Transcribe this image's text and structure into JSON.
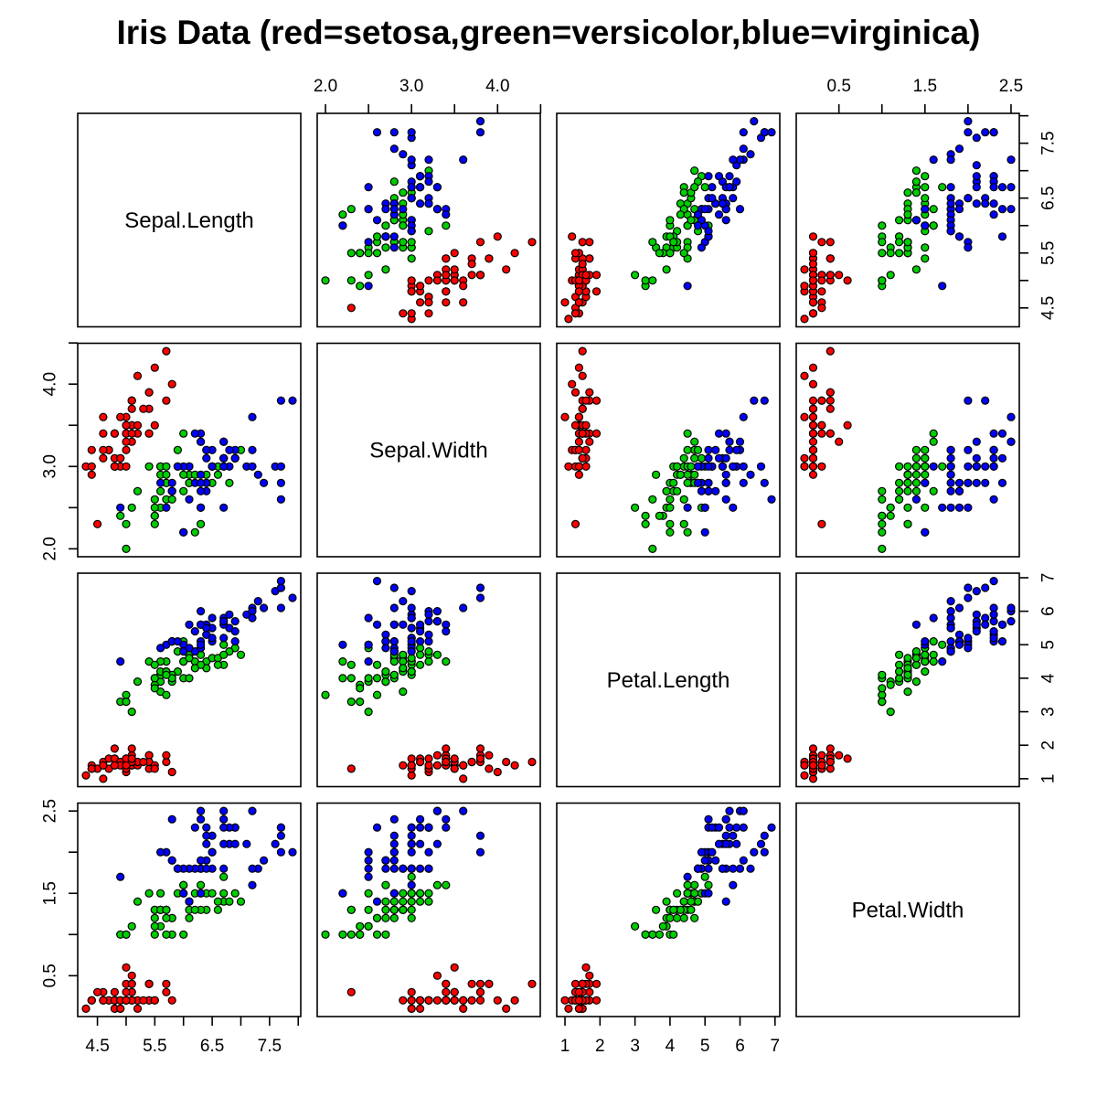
{
  "title": "Iris Data (red=setosa,green=versicolor,blue=virginica)",
  "chart_data": {
    "type": "scatter",
    "subtype": "pairs-matrix",
    "title": "Iris Data (red=setosa,green=versicolor,blue=virginica)",
    "grid": false,
    "legend": "encoded in title: red=setosa, green=versicolor, blue=virginica",
    "point_style": {
      "shape": "circle",
      "stroke": "#000000",
      "fill_by": "species"
    },
    "species": [
      "setosa",
      "versicolor",
      "virginica"
    ],
    "colors": {
      "setosa": "#FF0000",
      "versicolor": "#00CD00",
      "virginica": "#0000FF"
    },
    "variables": [
      {
        "name": "Sepal.Length",
        "lim": [
          4.156,
          8.044
        ],
        "ticks": [
          4.5,
          5.0,
          5.5,
          6.0,
          6.5,
          7.0,
          7.5,
          8.0
        ],
        "tick_labels": [
          "4.5",
          "",
          "5.5",
          "",
          "6.5",
          "",
          "7.5",
          ""
        ]
      },
      {
        "name": "Sepal.Width",
        "lim": [
          1.904,
          4.496
        ],
        "ticks": [
          2.0,
          2.5,
          3.0,
          3.5,
          4.0,
          4.5
        ],
        "tick_labels": [
          "2.0",
          "",
          "3.0",
          "",
          "4.0",
          ""
        ]
      },
      {
        "name": "Petal.Length",
        "lim": [
          0.764,
          7.136
        ],
        "ticks": [
          1,
          2,
          3,
          4,
          5,
          6,
          7
        ],
        "tick_labels": [
          "1",
          "2",
          "3",
          "4",
          "5",
          "6",
          "7"
        ]
      },
      {
        "name": "Petal.Width",
        "lim": [
          0.004,
          2.596
        ],
        "ticks": [
          0.5,
          1.0,
          1.5,
          2.0,
          2.5
        ],
        "tick_labels": [
          "0.5",
          "",
          "1.5",
          "",
          "2.5"
        ]
      }
    ],
    "axis_sides": {
      "top_columns": [
        1,
        3
      ],
      "bottom_columns": [
        0,
        2
      ],
      "left_rows": [
        1,
        3
      ],
      "right_rows": [
        0,
        2
      ]
    },
    "points": [
      [
        5.1,
        3.5,
        1.4,
        0.2,
        0
      ],
      [
        4.9,
        3.0,
        1.4,
        0.2,
        0
      ],
      [
        4.7,
        3.2,
        1.3,
        0.2,
        0
      ],
      [
        4.6,
        3.1,
        1.5,
        0.2,
        0
      ],
      [
        5.0,
        3.6,
        1.4,
        0.2,
        0
      ],
      [
        5.4,
        3.9,
        1.7,
        0.4,
        0
      ],
      [
        4.6,
        3.4,
        1.4,
        0.3,
        0
      ],
      [
        5.0,
        3.4,
        1.5,
        0.2,
        0
      ],
      [
        4.4,
        2.9,
        1.4,
        0.2,
        0
      ],
      [
        4.9,
        3.1,
        1.5,
        0.1,
        0
      ],
      [
        5.4,
        3.7,
        1.5,
        0.2,
        0
      ],
      [
        4.8,
        3.4,
        1.6,
        0.2,
        0
      ],
      [
        4.8,
        3.0,
        1.4,
        0.1,
        0
      ],
      [
        4.3,
        3.0,
        1.1,
        0.1,
        0
      ],
      [
        5.8,
        4.0,
        1.2,
        0.2,
        0
      ],
      [
        5.7,
        4.4,
        1.5,
        0.4,
        0
      ],
      [
        5.4,
        3.9,
        1.3,
        0.4,
        0
      ],
      [
        5.1,
        3.5,
        1.4,
        0.3,
        0
      ],
      [
        5.7,
        3.8,
        1.7,
        0.3,
        0
      ],
      [
        5.1,
        3.8,
        1.5,
        0.3,
        0
      ],
      [
        5.4,
        3.4,
        1.7,
        0.2,
        0
      ],
      [
        5.1,
        3.7,
        1.5,
        0.4,
        0
      ],
      [
        4.6,
        3.6,
        1.0,
        0.2,
        0
      ],
      [
        5.1,
        3.3,
        1.7,
        0.5,
        0
      ],
      [
        4.8,
        3.4,
        1.9,
        0.2,
        0
      ],
      [
        5.0,
        3.0,
        1.6,
        0.2,
        0
      ],
      [
        5.0,
        3.4,
        1.6,
        0.4,
        0
      ],
      [
        5.2,
        3.5,
        1.5,
        0.2,
        0
      ],
      [
        5.2,
        3.4,
        1.4,
        0.2,
        0
      ],
      [
        4.7,
        3.2,
        1.6,
        0.2,
        0
      ],
      [
        4.8,
        3.1,
        1.6,
        0.2,
        0
      ],
      [
        5.4,
        3.4,
        1.5,
        0.4,
        0
      ],
      [
        5.2,
        4.1,
        1.5,
        0.1,
        0
      ],
      [
        5.5,
        4.2,
        1.4,
        0.2,
        0
      ],
      [
        4.9,
        3.1,
        1.5,
        0.2,
        0
      ],
      [
        5.0,
        3.2,
        1.2,
        0.2,
        0
      ],
      [
        5.5,
        3.5,
        1.3,
        0.2,
        0
      ],
      [
        4.9,
        3.6,
        1.4,
        0.1,
        0
      ],
      [
        4.4,
        3.0,
        1.3,
        0.2,
        0
      ],
      [
        5.1,
        3.4,
        1.5,
        0.2,
        0
      ],
      [
        5.0,
        3.5,
        1.3,
        0.3,
        0
      ],
      [
        4.5,
        2.3,
        1.3,
        0.3,
        0
      ],
      [
        4.4,
        3.2,
        1.3,
        0.2,
        0
      ],
      [
        5.0,
        3.5,
        1.6,
        0.6,
        0
      ],
      [
        5.1,
        3.8,
        1.9,
        0.4,
        0
      ],
      [
        4.8,
        3.0,
        1.4,
        0.3,
        0
      ],
      [
        5.1,
        3.8,
        1.6,
        0.2,
        0
      ],
      [
        4.6,
        3.2,
        1.4,
        0.2,
        0
      ],
      [
        5.3,
        3.7,
        1.5,
        0.2,
        0
      ],
      [
        5.0,
        3.3,
        1.4,
        0.2,
        0
      ],
      [
        7.0,
        3.2,
        4.7,
        1.4,
        1
      ],
      [
        6.4,
        3.2,
        4.5,
        1.5,
        1
      ],
      [
        6.9,
        3.1,
        4.9,
        1.5,
        1
      ],
      [
        5.5,
        2.3,
        4.0,
        1.3,
        1
      ],
      [
        6.5,
        2.8,
        4.6,
        1.5,
        1
      ],
      [
        5.7,
        2.8,
        4.5,
        1.3,
        1
      ],
      [
        6.3,
        3.3,
        4.7,
        1.6,
        1
      ],
      [
        4.9,
        2.4,
        3.3,
        1.0,
        1
      ],
      [
        6.6,
        2.9,
        4.6,
        1.3,
        1
      ],
      [
        5.2,
        2.7,
        3.9,
        1.4,
        1
      ],
      [
        5.0,
        2.0,
        3.5,
        1.0,
        1
      ],
      [
        5.9,
        3.0,
        4.2,
        1.5,
        1
      ],
      [
        6.0,
        2.2,
        4.0,
        1.0,
        1
      ],
      [
        6.1,
        2.9,
        4.7,
        1.4,
        1
      ],
      [
        5.6,
        2.9,
        3.6,
        1.3,
        1
      ],
      [
        6.7,
        3.1,
        4.4,
        1.4,
        1
      ],
      [
        5.6,
        3.0,
        4.5,
        1.5,
        1
      ],
      [
        5.8,
        2.7,
        4.1,
        1.0,
        1
      ],
      [
        6.2,
        2.2,
        4.5,
        1.5,
        1
      ],
      [
        5.6,
        2.5,
        3.9,
        1.1,
        1
      ],
      [
        5.9,
        3.2,
        4.8,
        1.8,
        1
      ],
      [
        6.1,
        2.8,
        4.0,
        1.3,
        1
      ],
      [
        6.3,
        2.5,
        4.9,
        1.5,
        1
      ],
      [
        6.1,
        2.8,
        4.7,
        1.2,
        1
      ],
      [
        6.4,
        2.9,
        4.3,
        1.3,
        1
      ],
      [
        6.6,
        3.0,
        4.4,
        1.4,
        1
      ],
      [
        6.8,
        2.8,
        4.8,
        1.4,
        1
      ],
      [
        6.7,
        3.0,
        5.0,
        1.7,
        1
      ],
      [
        6.0,
        2.9,
        4.5,
        1.5,
        1
      ],
      [
        5.7,
        2.6,
        3.5,
        1.0,
        1
      ],
      [
        5.5,
        2.4,
        3.8,
        1.1,
        1
      ],
      [
        5.5,
        2.4,
        3.7,
        1.0,
        1
      ],
      [
        5.8,
        2.7,
        3.9,
        1.2,
        1
      ],
      [
        6.0,
        2.7,
        5.1,
        1.6,
        1
      ],
      [
        5.4,
        3.0,
        4.5,
        1.5,
        1
      ],
      [
        6.0,
        3.4,
        4.5,
        1.6,
        1
      ],
      [
        6.7,
        3.1,
        4.7,
        1.5,
        1
      ],
      [
        6.3,
        2.3,
        4.4,
        1.3,
        1
      ],
      [
        5.6,
        3.0,
        4.1,
        1.3,
        1
      ],
      [
        5.5,
        2.5,
        4.0,
        1.3,
        1
      ],
      [
        5.5,
        2.6,
        4.4,
        1.2,
        1
      ],
      [
        6.1,
        3.0,
        4.6,
        1.4,
        1
      ],
      [
        5.8,
        2.6,
        4.0,
        1.2,
        1
      ],
      [
        5.0,
        2.3,
        3.3,
        1.0,
        1
      ],
      [
        5.6,
        2.7,
        4.2,
        1.3,
        1
      ],
      [
        5.7,
        3.0,
        4.2,
        1.2,
        1
      ],
      [
        5.7,
        2.9,
        4.2,
        1.3,
        1
      ],
      [
        6.2,
        2.9,
        4.3,
        1.3,
        1
      ],
      [
        5.1,
        2.5,
        3.0,
        1.1,
        1
      ],
      [
        5.7,
        2.8,
        4.1,
        1.3,
        1
      ],
      [
        6.3,
        3.3,
        6.0,
        2.5,
        2
      ],
      [
        5.8,
        2.7,
        5.1,
        1.9,
        2
      ],
      [
        7.1,
        3.0,
        5.9,
        2.1,
        2
      ],
      [
        6.3,
        2.9,
        5.6,
        1.8,
        2
      ],
      [
        6.5,
        3.0,
        5.8,
        2.2,
        2
      ],
      [
        7.6,
        3.0,
        6.6,
        2.1,
        2
      ],
      [
        4.9,
        2.5,
        4.5,
        1.7,
        2
      ],
      [
        7.3,
        2.9,
        6.3,
        1.8,
        2
      ],
      [
        6.7,
        2.5,
        5.8,
        1.8,
        2
      ],
      [
        7.2,
        3.6,
        6.1,
        2.5,
        2
      ],
      [
        6.5,
        3.2,
        5.1,
        2.0,
        2
      ],
      [
        6.4,
        2.7,
        5.3,
        1.9,
        2
      ],
      [
        6.8,
        3.0,
        5.5,
        2.1,
        2
      ],
      [
        5.7,
        2.5,
        5.0,
        2.0,
        2
      ],
      [
        5.8,
        2.8,
        5.1,
        2.4,
        2
      ],
      [
        6.4,
        3.2,
        5.3,
        2.3,
        2
      ],
      [
        6.5,
        3.0,
        5.5,
        1.8,
        2
      ],
      [
        7.7,
        3.8,
        6.7,
        2.2,
        2
      ],
      [
        7.7,
        2.6,
        6.9,
        2.3,
        2
      ],
      [
        6.0,
        2.2,
        5.0,
        1.5,
        2
      ],
      [
        6.9,
        3.2,
        5.7,
        2.3,
        2
      ],
      [
        5.6,
        2.8,
        4.9,
        2.0,
        2
      ],
      [
        7.7,
        2.8,
        6.7,
        2.0,
        2
      ],
      [
        6.3,
        2.7,
        4.9,
        1.8,
        2
      ],
      [
        6.7,
        3.3,
        5.7,
        2.1,
        2
      ],
      [
        7.2,
        3.2,
        6.0,
        1.8,
        2
      ],
      [
        6.2,
        2.8,
        4.8,
        1.8,
        2
      ],
      [
        6.1,
        3.0,
        4.9,
        1.8,
        2
      ],
      [
        6.4,
        2.8,
        5.6,
        2.1,
        2
      ],
      [
        7.2,
        3.0,
        5.8,
        1.6,
        2
      ],
      [
        7.4,
        2.8,
        6.1,
        1.9,
        2
      ],
      [
        7.9,
        3.8,
        6.4,
        2.0,
        2
      ],
      [
        6.4,
        2.8,
        5.6,
        2.2,
        2
      ],
      [
        6.3,
        2.8,
        5.1,
        1.5,
        2
      ],
      [
        6.1,
        2.6,
        5.6,
        1.4,
        2
      ],
      [
        7.7,
        3.0,
        6.1,
        2.3,
        2
      ],
      [
        6.3,
        3.4,
        5.6,
        2.4,
        2
      ],
      [
        6.4,
        3.1,
        5.5,
        1.8,
        2
      ],
      [
        6.0,
        3.0,
        4.8,
        1.8,
        2
      ],
      [
        6.9,
        3.1,
        5.4,
        2.1,
        2
      ],
      [
        6.7,
        3.1,
        5.6,
        2.4,
        2
      ],
      [
        6.9,
        3.1,
        5.1,
        2.3,
        2
      ],
      [
        5.8,
        2.7,
        5.1,
        1.9,
        2
      ],
      [
        6.8,
        3.2,
        5.9,
        2.3,
        2
      ],
      [
        6.7,
        3.3,
        5.7,
        2.5,
        2
      ],
      [
        6.7,
        3.0,
        5.2,
        2.3,
        2
      ],
      [
        6.3,
        2.5,
        5.0,
        1.9,
        2
      ],
      [
        6.5,
        3.0,
        5.2,
        2.0,
        2
      ],
      [
        6.2,
        3.4,
        5.4,
        2.3,
        2
      ],
      [
        5.9,
        3.0,
        5.1,
        1.8,
        2
      ]
    ]
  }
}
